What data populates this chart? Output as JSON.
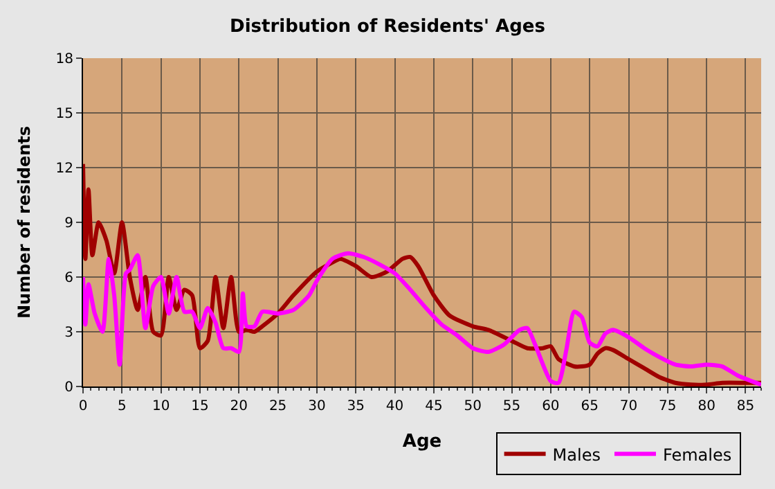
{
  "chart_data": {
    "type": "line",
    "title": "Distribution of Residents' Ages",
    "xlabel": "Age",
    "ylabel": "Number of residents",
    "xlim": [
      0,
      87
    ],
    "xticks": [
      0,
      5,
      10,
      15,
      20,
      25,
      30,
      35,
      40,
      45,
      50,
      55,
      60,
      65,
      70,
      75,
      80,
      85
    ],
    "ylim": [
      0,
      18
    ],
    "yticks": [
      0,
      3,
      6,
      9,
      12,
      15,
      18
    ],
    "grid": true,
    "legend": "bottom right",
    "marker": "none",
    "line_style": "solid",
    "series": [
      {
        "name": "Males",
        "color": "#a00000",
        "x": [
          0,
          0.3,
          0.7,
          1.2,
          2,
          3,
          4,
          5,
          6,
          7,
          8,
          9,
          10,
          11,
          12,
          13,
          14,
          15,
          16,
          17,
          18,
          19,
          20,
          21,
          22,
          23,
          25,
          27,
          30,
          32,
          33,
          35,
          37,
          39,
          41,
          42,
          43,
          45,
          47,
          50,
          52,
          55,
          57,
          59,
          60,
          61,
          63,
          64,
          65,
          66,
          67,
          68,
          70,
          72,
          74,
          76,
          78,
          80,
          82,
          85,
          87
        ],
        "values": [
          12.2,
          7,
          10.8,
          7.2,
          9,
          8,
          6.2,
          9,
          6,
          4.2,
          6,
          3,
          2.8,
          6,
          4.2,
          5.3,
          5,
          2.1,
          2.5,
          6,
          3.2,
          6,
          3,
          3.1,
          3,
          3.3,
          4,
          5,
          6.3,
          6.8,
          7,
          6.6,
          6,
          6.3,
          7,
          7.1,
          6.6,
          5,
          3.9,
          3.3,
          3.1,
          2.5,
          2.1,
          2.1,
          2.2,
          1.5,
          1.1,
          1.1,
          1.2,
          1.8,
          2.1,
          2,
          1.5,
          1,
          0.5,
          0.2,
          0.1,
          0.1,
          0.2,
          0.2,
          0.2
        ]
      },
      {
        "name": "Females",
        "color": "#ff00ff",
        "x": [
          0,
          0.3,
          0.7,
          1.5,
          2.5,
          3.3,
          4,
          4.7,
          5.5,
          6,
          7,
          8,
          9,
          10,
          11,
          12,
          13,
          14,
          15,
          16,
          17,
          18,
          19,
          20,
          20.5,
          21,
          22,
          23,
          25,
          27,
          29,
          30,
          32,
          34,
          36,
          38,
          40,
          42,
          44,
          46,
          48,
          50,
          52,
          54,
          56,
          57,
          58,
          60,
          61,
          62,
          63,
          64,
          65,
          66,
          67,
          68,
          70,
          72,
          74,
          76,
          78,
          80,
          82,
          84,
          87
        ],
        "values": [
          6,
          3.4,
          5.6,
          4,
          3,
          7,
          5,
          1.2,
          6.2,
          6.4,
          7.2,
          3.2,
          5.5,
          6,
          4,
          6,
          4.1,
          4.1,
          3.2,
          4.3,
          3.5,
          2.1,
          2.1,
          1.9,
          5.1,
          3.3,
          3.3,
          4.1,
          4,
          4.2,
          5,
          5.8,
          7,
          7.3,
          7.1,
          6.7,
          6.2,
          5.3,
          4.3,
          3.4,
          2.8,
          2.1,
          1.9,
          2.3,
          3.1,
          3.2,
          2.3,
          0.3,
          0.2,
          2,
          4.1,
          3.8,
          2.4,
          2.2,
          2.9,
          3.1,
          2.7,
          2.1,
          1.6,
          1.2,
          1.1,
          1.2,
          1.1,
          0.6,
          0.1
        ]
      }
    ]
  }
}
